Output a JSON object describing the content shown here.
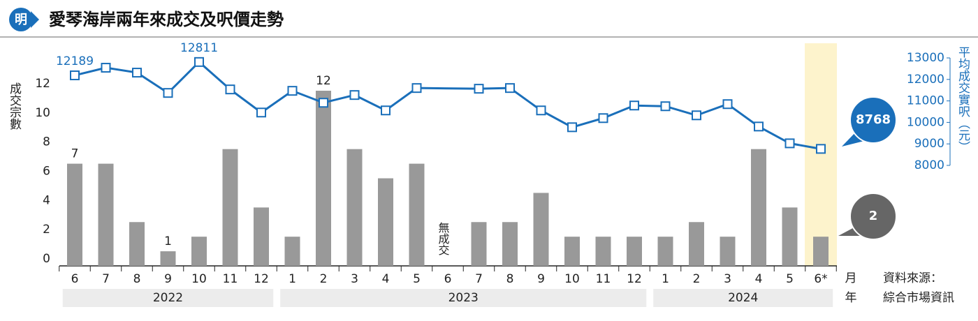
{
  "chart_data": {
    "type": "combo",
    "title": "愛琴海岸兩年來成交及呎價走勢",
    "logo": "明",
    "categories": [
      "6",
      "7",
      "8",
      "9",
      "10",
      "11",
      "12",
      "1",
      "2",
      "3",
      "4",
      "5",
      "6",
      "7",
      "8",
      "9",
      "10",
      "11",
      "12",
      "1",
      "2",
      "3",
      "4",
      "5",
      "6*"
    ],
    "years": [
      "2022",
      "2022",
      "2022",
      "2022",
      "2022",
      "2022",
      "2022",
      "2023",
      "2023",
      "2023",
      "2023",
      "2023",
      "2023",
      "2023",
      "2023",
      "2023",
      "2023",
      "2023",
      "2023",
      "2024",
      "2024",
      "2024",
      "2024",
      "2024",
      "2024"
    ],
    "x_label": "月",
    "year_label": "年",
    "y_label": "成交宗數",
    "y2_label": "平均成交實呎（元）",
    "annotation": "無成交",
    "source": [
      "資料來源：",
      "綜合市場資訊"
    ],
    "ylim": [
      0,
      12
    ],
    "yticks": [
      0,
      2,
      4,
      6,
      8,
      10,
      12
    ],
    "y2lim": [
      8000,
      13000
    ],
    "y2ticks": [
      8000,
      9000,
      10000,
      11000,
      12000,
      13000
    ],
    "highlight_last": true,
    "series": [
      {
        "type": "bar",
        "color": "#999999",
        "values": [
          7,
          7,
          3,
          1,
          2,
          8,
          4,
          2,
          12,
          8,
          6,
          7,
          0,
          3,
          3,
          5,
          2,
          2,
          2,
          2,
          3,
          2,
          8,
          4,
          2
        ],
        "value_labels": [
          "7",
          null,
          null,
          "1",
          null,
          null,
          null,
          null,
          "12",
          null,
          null,
          null,
          null,
          null,
          null,
          null,
          null,
          null,
          null,
          null,
          null,
          null,
          null,
          null,
          "2"
        ],
        "callout_color": "#666666"
      },
      {
        "type": "line",
        "axis": "y2",
        "color": "#1a6fba",
        "values": [
          12189,
          12544,
          12316,
          11371,
          12811,
          11534,
          10459,
          11469,
          10915,
          11274,
          10557,
          11599,
          null,
          11567,
          11599,
          10557,
          9775,
          10199,
          10785,
          10752,
          10329,
          10850,
          9808,
          9026,
          8768
        ],
        "value_labels": [
          "12189",
          null,
          null,
          null,
          "12811",
          null,
          null,
          null,
          null,
          null,
          null,
          null,
          null,
          null,
          null,
          null,
          null,
          null,
          null,
          null,
          null,
          null,
          null,
          null,
          "8768"
        ],
        "callout_color": "#1a6fba"
      }
    ]
  }
}
